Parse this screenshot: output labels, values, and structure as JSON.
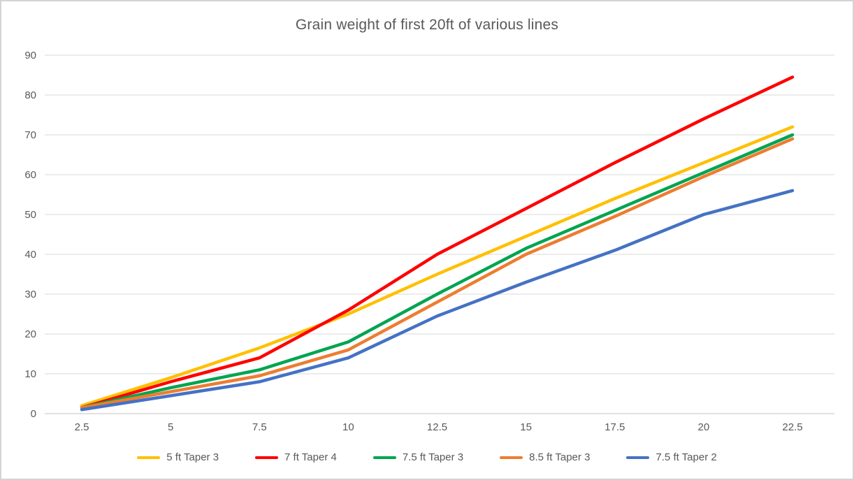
{
  "window": {
    "background_color": "#FFFFFF",
    "border_color": "#D4D4D4"
  },
  "chart_data": {
    "type": "line",
    "title": "Grain weight of first 20ft of various lines",
    "xlabel": "",
    "ylabel": "",
    "x": [
      2.5,
      5,
      7.5,
      10,
      12.5,
      15,
      17.5,
      20,
      22.5
    ],
    "x_tick_labels": [
      "2.5",
      "5",
      "7.5",
      "10",
      "12.5",
      "15",
      "17.5",
      "20",
      "22.5"
    ],
    "y_ticks": [
      0,
      10,
      20,
      30,
      40,
      50,
      60,
      70,
      80,
      90
    ],
    "y_tick_labels": [
      "0",
      "10",
      "20",
      "30",
      "40",
      "50",
      "60",
      "70",
      "80",
      "90"
    ],
    "ylim": [
      0,
      90
    ],
    "xlim": [
      2.5,
      22.5
    ],
    "grid": "horizontal",
    "legend_position": "bottom",
    "series": [
      {
        "name": "5 ft Taper 3",
        "color": "#FFC000",
        "values": [
          2,
          9,
          16.5,
          25,
          35,
          44.5,
          54,
          63,
          72
        ]
      },
      {
        "name": "7 ft Taper 4",
        "color": "#FF0000",
        "values": [
          1.5,
          8,
          14,
          26,
          40,
          51.5,
          63,
          74,
          84.5
        ]
      },
      {
        "name": "7.5 ft Taper 3",
        "color": "#00A550",
        "values": [
          1.5,
          6.5,
          11,
          18,
          30,
          41.5,
          51,
          60.5,
          70
        ]
      },
      {
        "name": "8.5 ft Taper 3",
        "color": "#ED7D31",
        "values": [
          1.5,
          5.5,
          9.5,
          16,
          28,
          40,
          49.5,
          59.5,
          69
        ]
      },
      {
        "name": "7.5 ft Taper 2",
        "color": "#4472C4",
        "values": [
          1,
          4.5,
          8,
          14,
          24.5,
          33,
          41,
          50,
          56
        ]
      }
    ],
    "styles": {
      "text_color": "#595959",
      "gridline_color": "#D9D9D9",
      "axis_line_color": "#C3C3C3",
      "line_width": 4.5
    }
  }
}
